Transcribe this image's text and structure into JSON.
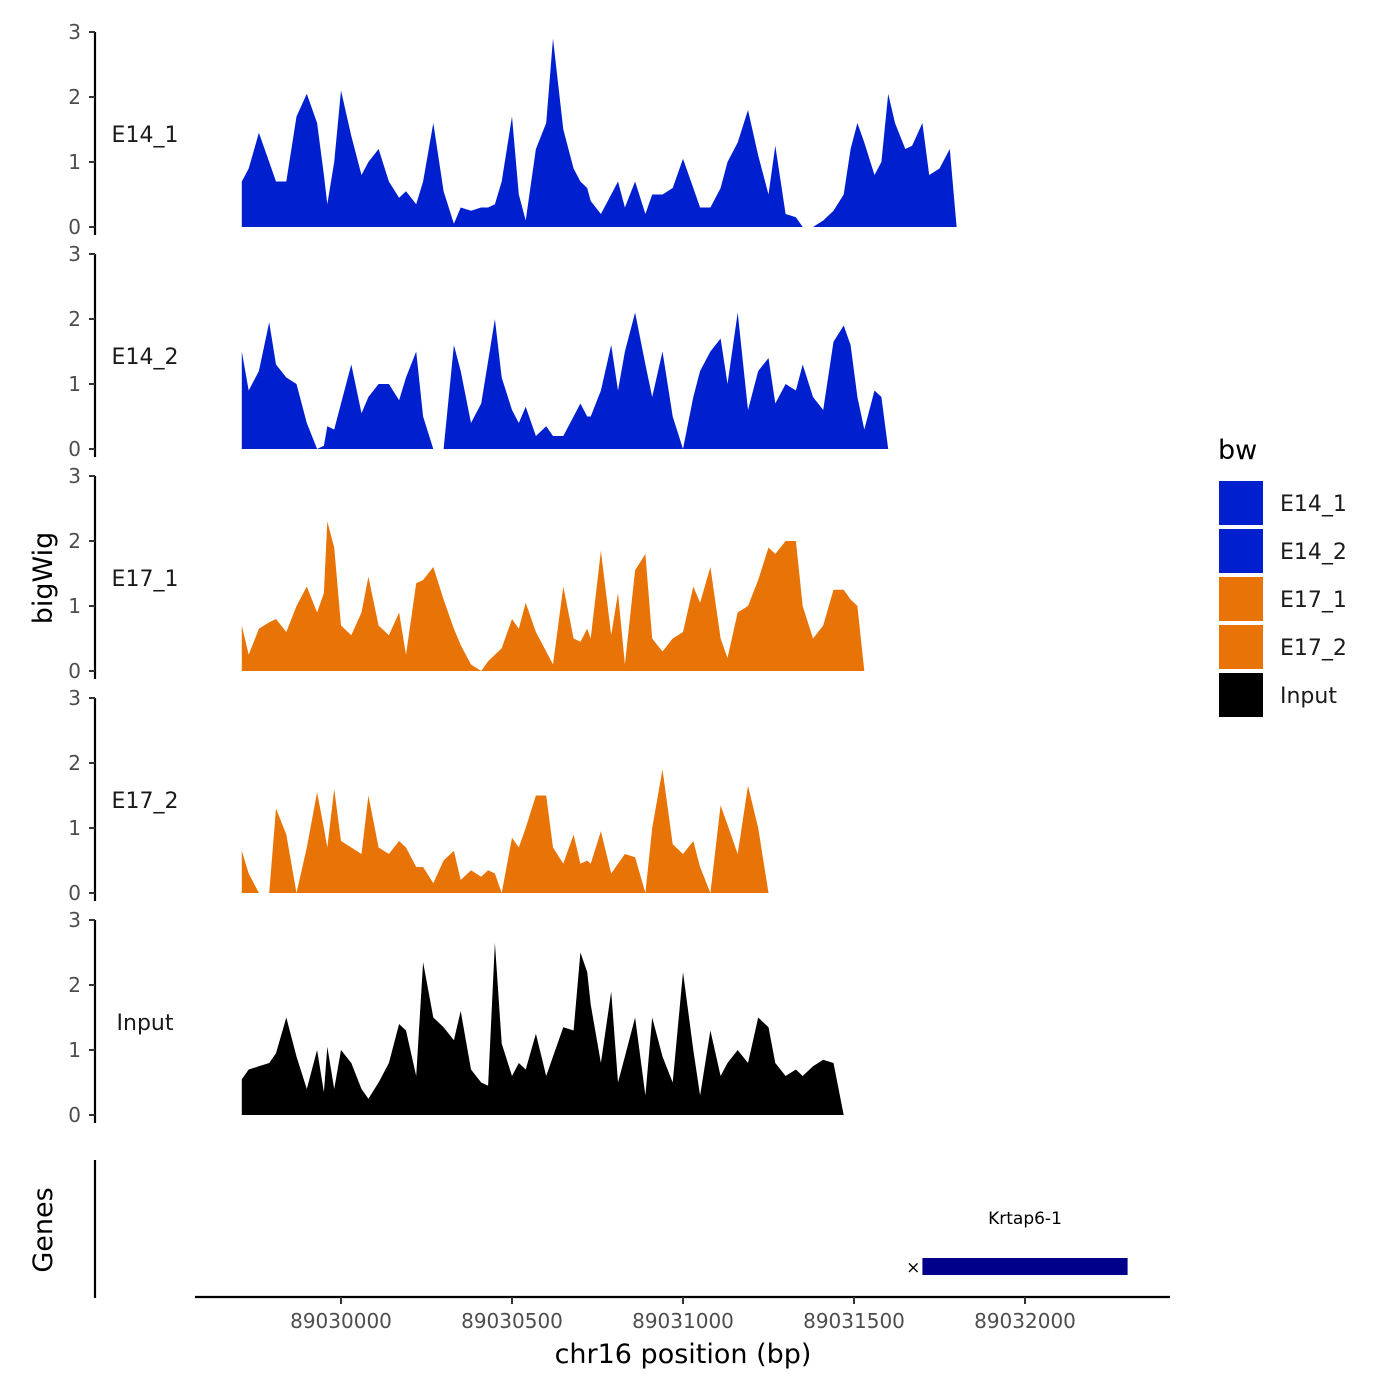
{
  "chart_data": {
    "type": "area",
    "chromosome": "chr16",
    "xlabel": "chr16 position (bp)",
    "ylabel": "bigWig",
    "genes_label": "Genes",
    "xlim": [
      89029500,
      89032350
    ],
    "ylim": [
      0,
      3
    ],
    "y_ticks": [
      0,
      1,
      2,
      3
    ],
    "x_ticks": [
      89030000,
      89030500,
      89031000,
      89031500,
      89032000
    ],
    "x_tick_labels": [
      "89030000",
      "89030500",
      "89031000",
      "89031500",
      "89032000"
    ],
    "legend": {
      "title": "bw",
      "entries": [
        {
          "name": "E14_1",
          "color": "#0020D0"
        },
        {
          "name": "E14_2",
          "color": "#0020D0"
        },
        {
          "name": "E17_1",
          "color": "#E87306"
        },
        {
          "name": "E17_2",
          "color": "#E87306"
        },
        {
          "name": "Input",
          "color": "#000000"
        }
      ]
    },
    "x_profile": [
      89029710,
      89029730,
      89029760,
      89029790,
      89029810,
      89029840,
      89029870,
      89029900,
      89029930,
      89029950,
      89029960,
      89029980,
      89030000,
      89030030,
      89030060,
      89030080,
      89030110,
      89030140,
      89030170,
      89030190,
      89030220,
      89030240,
      89030270,
      89030300,
      89030330,
      89030350,
      89030380,
      89030410,
      89030430,
      89030450,
      89030470,
      89030500,
      89030520,
      89030540,
      89030570,
      89030600,
      89030620,
      89030650,
      89030680,
      89030700,
      89030720,
      89030730,
      89030760,
      89030790,
      89030810,
      89030830,
      89030860,
      89030890,
      89030910,
      89030940,
      89030970,
      89031000,
      89031030,
      89031050,
      89031080,
      89031110,
      89031130,
      89031160,
      89031190,
      89031220,
      89031250,
      89031270,
      89031300,
      89031330,
      89031350,
      89031380,
      89031410,
      89031440,
      89031470,
      89031490,
      89031510,
      89031530,
      89031560,
      89031580,
      89031600,
      89031620,
      89031650,
      89031670,
      89031700,
      89031720,
      89031750,
      89031780,
      89031800,
      89031830,
      89031850,
      89031870,
      89031900,
      89031930,
      89031950,
      89031980,
      89032000,
      89032030,
      89032060,
      89032080,
      89032100,
      89032130,
      89032160,
      89032190,
      89032210,
      89032240,
      89032270
    ],
    "series": [
      {
        "name": "E14_1",
        "label": "E14_1",
        "color": "#0020D0",
        "values": [
          0.7,
          0.9,
          1.45,
          1.0,
          0.7,
          0.7,
          1.7,
          2.05,
          1.6,
          0.8,
          0.35,
          1.0,
          2.1,
          1.4,
          0.8,
          1.0,
          1.2,
          0.7,
          0.45,
          0.55,
          0.35,
          0.7,
          1.6,
          0.55,
          0.05,
          0.3,
          0.25,
          0.3,
          0.3,
          0.35,
          0.7,
          1.7,
          0.5,
          0.1,
          1.2,
          1.6,
          2.9,
          1.5,
          0.9,
          0.7,
          0.6,
          0.4,
          0.2,
          0.5,
          0.7,
          0.3,
          0.7,
          0.2,
          0.5,
          0.5,
          0.6,
          1.05,
          0.6,
          0.3,
          0.3,
          0.6,
          1.0,
          1.3,
          1.8,
          1.1,
          0.5,
          1.25,
          0.2,
          0.15,
          0.0,
          0.0,
          0.1,
          0.25,
          0.5,
          1.2,
          1.6,
          1.3,
          0.8,
          1.0,
          2.05,
          1.6,
          1.2,
          1.25,
          1.6,
          0.8,
          0.9,
          1.2,
          0.0,
          0.0,
          0.0,
          0.0,
          0.0,
          0.0,
          0.0,
          0.0,
          0.0,
          0.0,
          0.0,
          0.0,
          0.0,
          0.0,
          0.0,
          0.0,
          0.0,
          0.0,
          0.0
        ]
      },
      {
        "name": "E14_2",
        "label": "E14_2",
        "color": "#0020D0",
        "values": [
          1.5,
          0.9,
          1.2,
          1.95,
          1.3,
          1.1,
          1.0,
          0.4,
          0.0,
          0.05,
          0.35,
          0.3,
          0.7,
          1.3,
          0.55,
          0.8,
          1.0,
          1.0,
          0.75,
          1.1,
          1.5,
          0.5,
          0.0,
          0.0,
          1.6,
          1.2,
          0.4,
          0.7,
          1.35,
          2.0,
          1.1,
          0.6,
          0.4,
          0.65,
          0.2,
          0.35,
          0.2,
          0.2,
          0.5,
          0.7,
          0.5,
          0.5,
          0.9,
          1.6,
          0.9,
          1.5,
          2.1,
          1.3,
          0.8,
          1.5,
          0.5,
          0.0,
          0.8,
          1.2,
          1.5,
          1.7,
          1.0,
          2.1,
          0.6,
          1.2,
          1.4,
          0.7,
          1.0,
          0.9,
          1.3,
          0.8,
          0.6,
          1.65,
          1.9,
          1.6,
          0.8,
          0.3,
          0.9,
          0.8,
          0.0,
          0.0,
          0.0,
          0.0,
          0.0,
          0.0,
          0.0,
          0.0,
          0.0,
          0.0,
          0.0,
          0.0,
          0.0,
          0.0,
          0.0,
          0.0,
          0.0,
          0.0,
          0.0,
          0.0,
          0.0,
          0.0,
          0.0,
          0.0,
          0.0,
          0.0,
          0.0
        ]
      },
      {
        "name": "E17_1",
        "label": "E17_1",
        "color": "#E87306",
        "values": [
          0.7,
          0.25,
          0.65,
          0.75,
          0.8,
          0.6,
          1.0,
          1.3,
          0.9,
          1.2,
          2.3,
          1.9,
          0.7,
          0.55,
          0.9,
          1.45,
          0.7,
          0.55,
          0.9,
          0.25,
          1.35,
          1.4,
          1.6,
          1.1,
          0.65,
          0.4,
          0.1,
          0.0,
          0.15,
          0.25,
          0.35,
          0.8,
          0.65,
          1.05,
          0.6,
          0.3,
          0.1,
          1.3,
          0.5,
          0.45,
          0.65,
          0.5,
          1.85,
          0.55,
          1.2,
          0.1,
          1.55,
          1.8,
          0.5,
          0.3,
          0.5,
          0.6,
          1.3,
          1.05,
          1.6,
          0.5,
          0.2,
          0.9,
          1.0,
          1.4,
          1.9,
          1.8,
          2.0,
          2.0,
          1.0,
          0.5,
          0.7,
          1.25,
          1.25,
          1.1,
          1.0,
          0.0,
          0.0,
          0.0,
          0.0,
          0.0,
          0.0,
          0.0,
          0.0,
          0.0,
          0.0,
          0.0,
          0.0,
          0.0,
          0.0,
          0.0,
          0.0,
          0.0,
          0.0,
          0.0,
          0.0,
          0.0,
          0.0,
          0.0,
          0.0,
          0.0,
          0.0,
          0.0,
          0.0,
          0.0,
          0.0
        ]
      },
      {
        "name": "E17_2",
        "label": "E17_2",
        "color": "#E87306",
        "values": [
          0.65,
          0.3,
          0.0,
          0.0,
          1.3,
          0.9,
          0.0,
          0.7,
          1.55,
          1.0,
          0.7,
          1.6,
          0.8,
          0.7,
          0.6,
          1.5,
          0.7,
          0.6,
          0.8,
          0.7,
          0.4,
          0.4,
          0.15,
          0.5,
          0.65,
          0.2,
          0.35,
          0.25,
          0.35,
          0.3,
          0.0,
          0.85,
          0.7,
          1.0,
          1.5,
          1.5,
          0.7,
          0.45,
          0.9,
          0.45,
          0.5,
          0.45,
          0.95,
          0.3,
          0.45,
          0.6,
          0.55,
          0.0,
          1.0,
          1.9,
          0.75,
          0.6,
          0.8,
          0.4,
          0.0,
          1.35,
          1.05,
          0.6,
          1.65,
          1.0,
          0.0,
          0.0,
          0.0,
          0.0,
          0.0,
          0.0,
          0.0,
          0.0,
          0.0,
          0.0,
          0.0,
          0.0,
          0.0,
          0.0,
          0.0,
          0.0,
          0.0,
          0.0,
          0.0,
          0.0,
          0.0,
          0.0,
          0.0,
          0.0,
          0.0,
          0.0,
          0.0,
          0.0,
          0.0,
          0.0,
          0.0,
          0.0,
          0.0,
          0.0,
          0.0,
          0.0,
          0.0,
          0.0,
          0.0,
          0.0,
          0.0
        ]
      },
      {
        "name": "Input",
        "label": "Input",
        "color": "#000000",
        "values": [
          0.55,
          0.7,
          0.75,
          0.8,
          0.95,
          1.5,
          0.9,
          0.4,
          1.0,
          0.35,
          1.05,
          0.4,
          1.0,
          0.8,
          0.4,
          0.25,
          0.5,
          0.8,
          1.4,
          1.3,
          0.6,
          2.35,
          1.5,
          1.35,
          1.15,
          1.6,
          0.7,
          0.5,
          0.45,
          2.65,
          1.1,
          0.6,
          0.8,
          0.7,
          1.25,
          0.6,
          0.9,
          1.35,
          1.3,
          2.5,
          2.2,
          1.7,
          0.8,
          1.9,
          0.5,
          0.9,
          1.5,
          0.3,
          1.5,
          0.9,
          0.5,
          2.2,
          1.0,
          0.3,
          1.3,
          0.6,
          0.8,
          1.0,
          0.8,
          1.5,
          1.35,
          0.8,
          0.6,
          0.7,
          0.6,
          0.75,
          0.85,
          0.8,
          0.0,
          0.0,
          0.0,
          0.0,
          0.0,
          0.0,
          0.0,
          0.0,
          0.0,
          0.0,
          0.0,
          0.0,
          0.0,
          0.0,
          0.0,
          0.0,
          0.0,
          0.0,
          0.0,
          0.0,
          0.0,
          0.0,
          0.0,
          0.0,
          0.0,
          0.0,
          0.0,
          0.0,
          0.0,
          0.0,
          0.0,
          0.0,
          0.0
        ]
      }
    ],
    "genes": [
      {
        "name": "Krtap6-1",
        "start": 89031700,
        "end": 89032300,
        "color": "#00008B"
      }
    ]
  }
}
